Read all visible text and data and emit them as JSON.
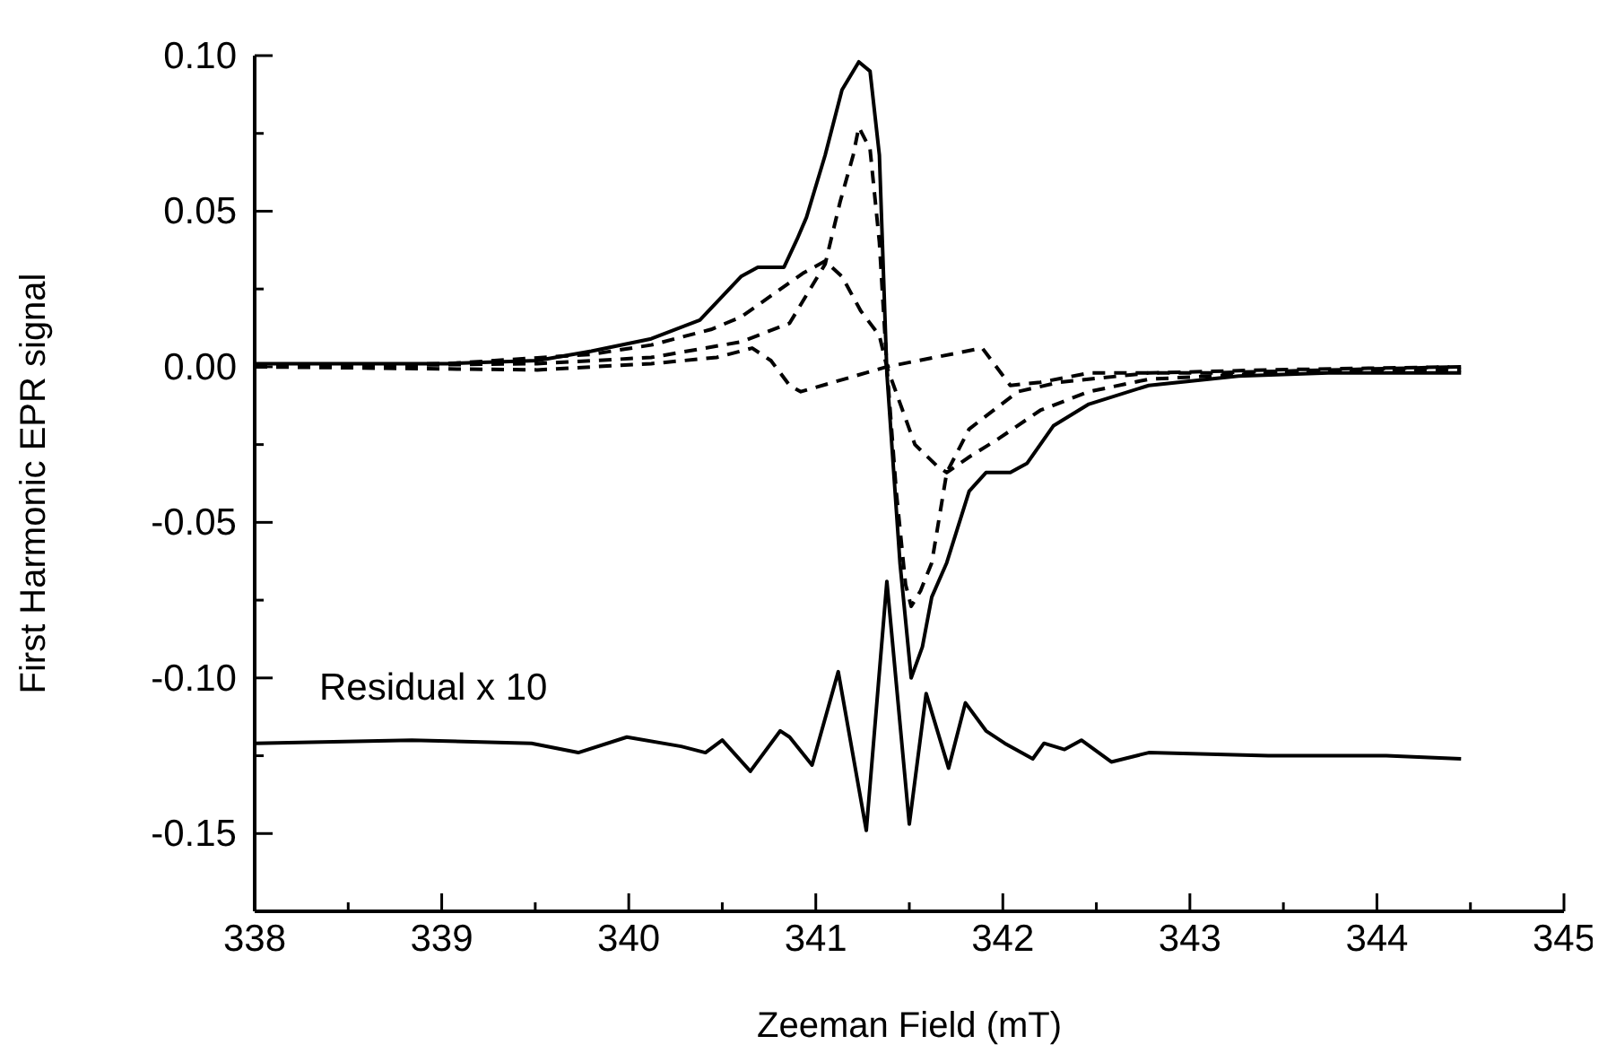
{
  "chart_data": {
    "type": "line",
    "xlabel": "Zeeman Field (mT)",
    "ylabel": "First Harmonic EPR signal",
    "xlim": [
      338,
      345
    ],
    "ylim": [
      -0.175,
      0.1
    ],
    "xticks": [
      338,
      {
        "value": 338.5,
        "label": null
      },
      339,
      {
        "value": 339.5,
        "label": null
      },
      340,
      {
        "value": 340.5,
        "label": null
      },
      341,
      {
        "value": 341.5,
        "label": null
      },
      342,
      {
        "value": 342.5,
        "label": null
      },
      343,
      {
        "value": 343.5,
        "label": null
      },
      344,
      {
        "value": 344.5,
        "label": null
      },
      345
    ],
    "yticks": [
      {
        "value": 0.1,
        "label": "0.10"
      },
      {
        "value": 0.075,
        "label": null
      },
      {
        "value": 0.05,
        "label": "0.05"
      },
      {
        "value": 0.025,
        "label": null
      },
      {
        "value": 0,
        "label": "0.00"
      },
      {
        "value": -0.025,
        "label": null
      },
      {
        "value": -0.05,
        "label": "-0.05"
      },
      {
        "value": -0.075,
        "label": null
      },
      {
        "value": -0.1,
        "label": "-0.10"
      },
      {
        "value": -0.125,
        "label": null
      },
      {
        "value": -0.15,
        "label": "-0.15"
      }
    ],
    "marker": "none",
    "annotations": [
      "Residual x 10"
    ],
    "series": [
      {
        "color": "#000000",
        "line_style": "solid",
        "x": [
          338,
          339.03,
          339.51,
          339.8,
          340.12,
          340.38,
          340.6,
          340.69,
          340.83,
          340.9,
          340.95,
          341.05,
          341.14,
          341.23,
          341.29,
          341.34,
          341.38,
          341.45,
          341.51,
          341.57,
          341.62,
          341.7,
          341.82,
          341.91,
          342.04,
          342.13,
          342.27,
          342.46,
          342.78,
          343.26,
          343.74,
          344.45
        ],
        "values": [
          0.001,
          0.001,
          0.002,
          0.005,
          0.009,
          0.015,
          0.029,
          0.032,
          0.032,
          0.041,
          0.048,
          0.068,
          0.089,
          0.098,
          0.095,
          0.068,
          -0.002,
          -0.063,
          -0.1,
          -0.09,
          -0.074,
          -0.063,
          -0.04,
          -0.034,
          -0.034,
          -0.031,
          -0.019,
          -0.012,
          -0.006,
          -0.003,
          -0.002,
          -0.002
        ]
      },
      {
        "color": "#000000",
        "line_style": "dashed",
        "x": [
          338,
          339.51,
          340.12,
          340.6,
          340.86,
          341.05,
          341.13,
          341.2,
          341.23,
          341.29,
          341.34,
          341.38,
          341.43,
          341.48,
          341.51,
          341.56,
          341.62,
          341.7,
          341.82,
          342.08,
          342.3,
          342.78,
          343.42,
          344.45
        ],
        "values": [
          0,
          0.001,
          0.003,
          0.008,
          0.014,
          0.033,
          0.053,
          0.068,
          0.077,
          0.07,
          0.04,
          0,
          -0.04,
          -0.07,
          -0.077,
          -0.072,
          -0.063,
          -0.034,
          -0.02,
          -0.008,
          -0.005,
          -0.002,
          -0.001,
          0
        ]
      },
      {
        "color": "#000000",
        "line_style": "dashed",
        "x": [
          338,
          339.03,
          339.8,
          340.12,
          340.44,
          340.6,
          340.93,
          341.05,
          341.14,
          341.24,
          341.34,
          341.38,
          341.53,
          341.65,
          341.7,
          341.82,
          341.98,
          342.2,
          342.46,
          342.78,
          343.42,
          344.45
        ],
        "values": [
          0,
          0.001,
          0.004,
          0.007,
          0.012,
          0.016,
          0.03,
          0.034,
          0.029,
          0.018,
          0.01,
          0,
          -0.025,
          -0.032,
          -0.034,
          -0.029,
          -0.023,
          -0.014,
          -0.008,
          -0.004,
          -0.002,
          -0.001
        ]
      },
      {
        "color": "#000000",
        "line_style": "dashed",
        "x": [
          338,
          339.51,
          340.12,
          340.47,
          340.66,
          340.76,
          340.86,
          340.92,
          341.38,
          341.89,
          342.04,
          342.2,
          342.46,
          343.09,
          344.45
        ],
        "values": [
          0,
          -0.001,
          0.001,
          0.003,
          0.006,
          0.002,
          -0.006,
          -0.008,
          0,
          0.006,
          -0.006,
          -0.005,
          -0.002,
          -0.002,
          0
        ]
      },
      {
        "color": "#000000",
        "line_style": "solid",
        "x": [
          338,
          338.84,
          339.48,
          339.73,
          339.99,
          340.28,
          340.41,
          340.5,
          340.65,
          340.81,
          340.86,
          340.98,
          341.12,
          341.27,
          341.38,
          341.5,
          341.59,
          341.71,
          341.8,
          341.91,
          342.01,
          342.16,
          342.22,
          342.33,
          342.42,
          342.58,
          342.78,
          343.42,
          344.05,
          344.45
        ],
        "values": [
          -0.121,
          -0.12,
          -0.121,
          -0.124,
          -0.119,
          -0.122,
          -0.124,
          -0.12,
          -0.13,
          -0.117,
          -0.119,
          -0.128,
          -0.098,
          -0.149,
          -0.069,
          -0.147,
          -0.105,
          -0.129,
          -0.108,
          -0.117,
          -0.121,
          -0.126,
          -0.121,
          -0.123,
          -0.12,
          -0.127,
          -0.124,
          -0.125,
          -0.125,
          -0.126
        ]
      }
    ]
  }
}
